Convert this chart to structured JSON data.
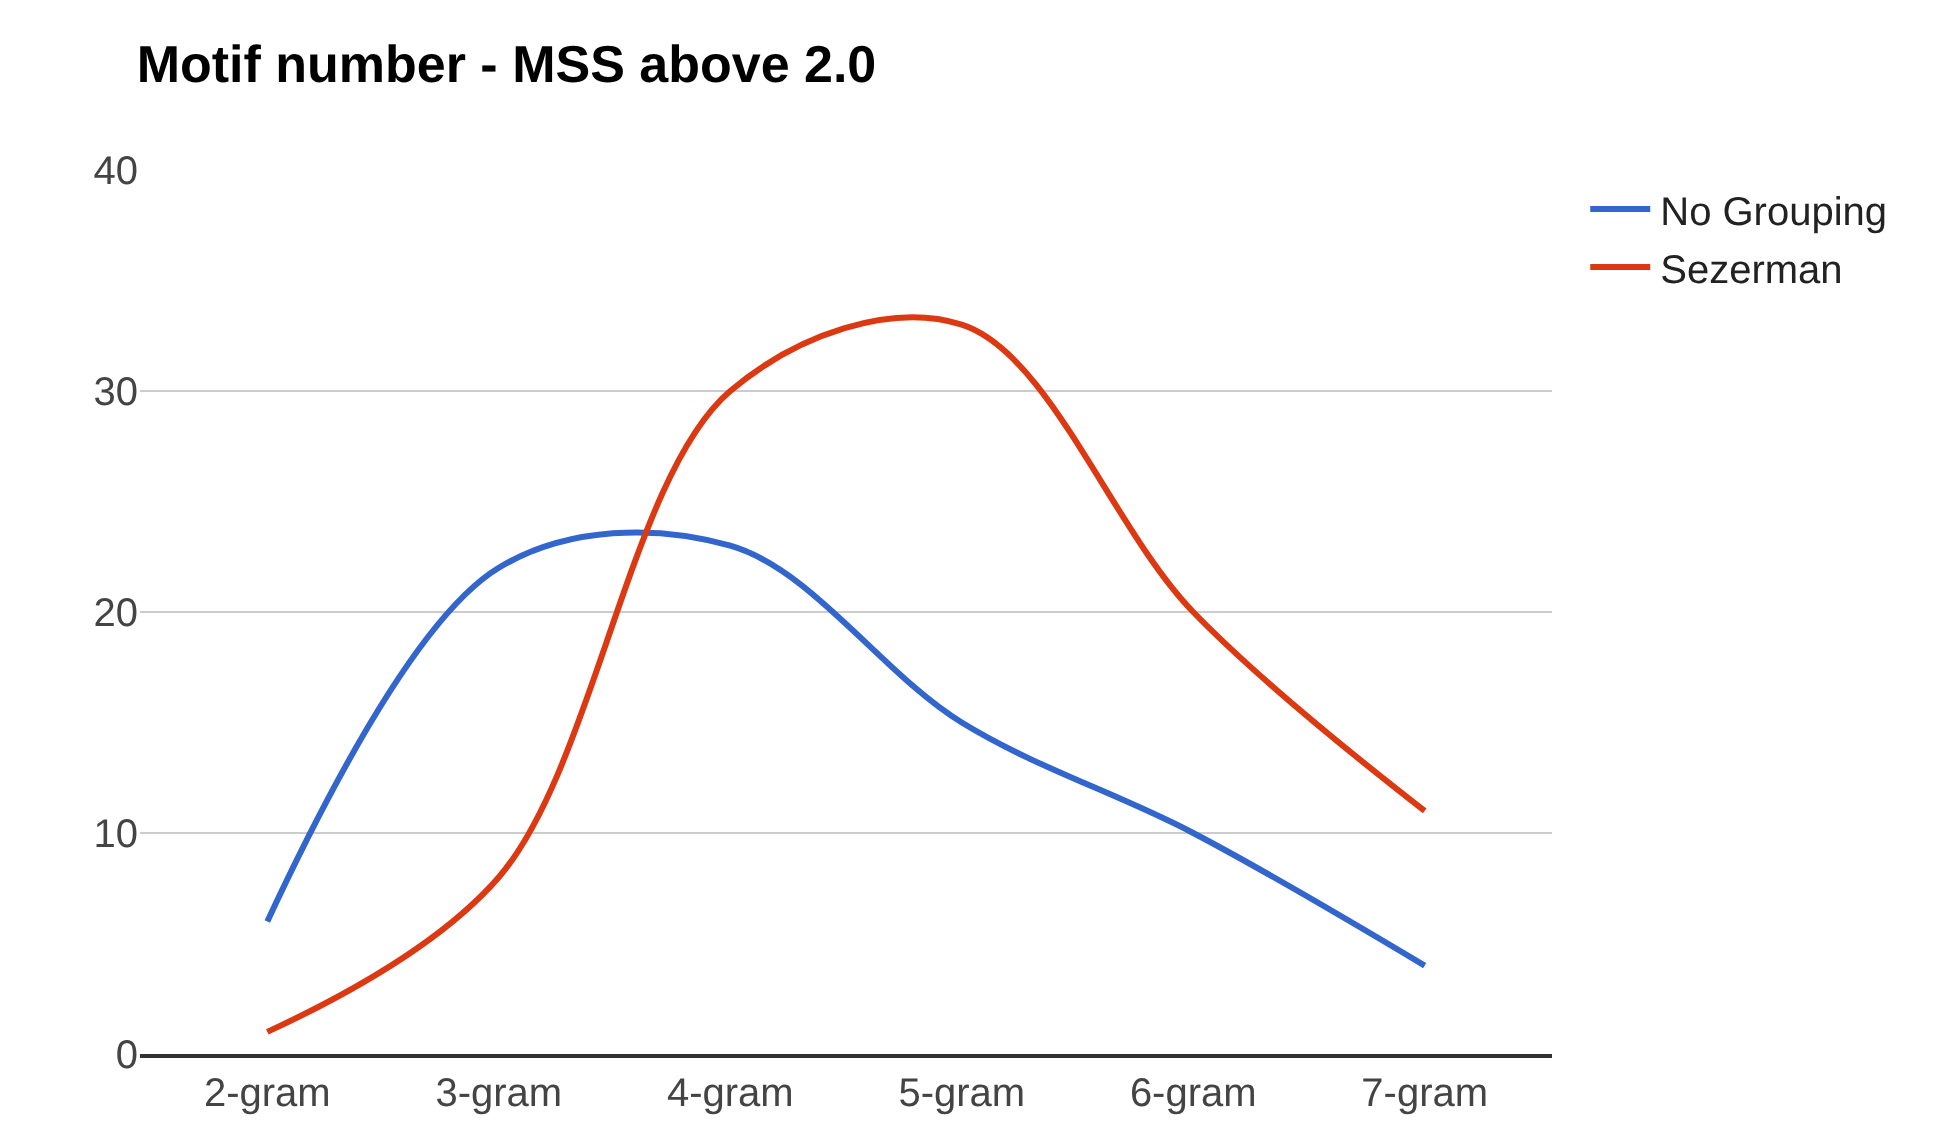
{
  "chart_data": {
    "type": "line",
    "title": "Motif number - MSS above 2.0",
    "categories": [
      "2-gram",
      "3-gram",
      "4-gram",
      "5-gram",
      "6-gram",
      "7-gram"
    ],
    "series": [
      {
        "name": "No Grouping",
        "color": "#3366cc",
        "values": [
          6,
          22,
          23,
          15,
          10,
          4
        ]
      },
      {
        "name": "Sezerman",
        "color": "#dc3912",
        "values": [
          1,
          8,
          30,
          33,
          20,
          11
        ]
      }
    ],
    "ylim": [
      0,
      40
    ],
    "yticks": [
      0,
      10,
      20,
      30,
      40
    ],
    "grid": "y",
    "legend": "top right",
    "marker": "none",
    "line_style": "solid"
  }
}
